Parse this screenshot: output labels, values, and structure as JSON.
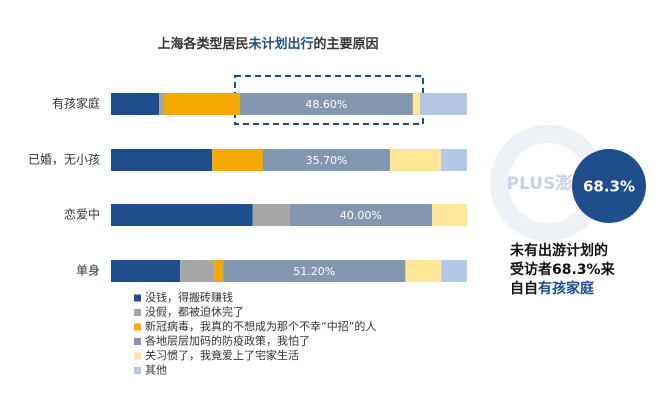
{
  "chart_data": {
    "type": "bar",
    "orientation": "horizontal",
    "stacked": true,
    "title_parts": [
      "上海各类型居民",
      "未计划出行",
      "的主要原因"
    ],
    "title_highlight_color": "#1f4e8c",
    "categories": [
      "有孩家庭",
      "已婚，无小孩",
      "恋爱中",
      "单身"
    ],
    "xlim": [
      0,
      100
    ],
    "series": [
      {
        "name": "没钱，得搬砖赚钱",
        "color": "#1f4e8c",
        "values": [
          13.5,
          28.4,
          39.8,
          19.4
        ]
      },
      {
        "name": "没假，都被迫休完了",
        "color": "#a6a6a6",
        "values": [
          1.4,
          0,
          10.4,
          9.6
        ]
      },
      {
        "name": "新冠病毒，我真的不想成为那个不幸“中招”的人",
        "color": "#f5a800",
        "values": [
          21.3,
          14.3,
          0,
          2.5
        ]
      },
      {
        "name": "各地层层加码的防疫政策，我怕了",
        "color": "#8497b0",
        "values": [
          48.6,
          35.7,
          40.0,
          51.2
        ],
        "value_labels": [
          "48.60%",
          "35.70%",
          "40.00%",
          "51.20%"
        ]
      },
      {
        "name": "关习惯了，我竟爱上了宅家生活",
        "color": "#ffe699",
        "values": [
          2.0,
          14.3,
          9.8,
          10.1
        ]
      },
      {
        "name": "其他",
        "color": "#b4c7e7",
        "values": [
          13.2,
          7.3,
          0,
          7.2
        ]
      }
    ],
    "callout": {
      "value": 68.3,
      "value_label": "68.3%",
      "color": "#1f4e8c",
      "watermark": "PLUS澎湃",
      "lines": [
        "未有出游计划的",
        "受访者68.3%来",
        "自"
      ],
      "highlight": "有孩家庭"
    }
  }
}
